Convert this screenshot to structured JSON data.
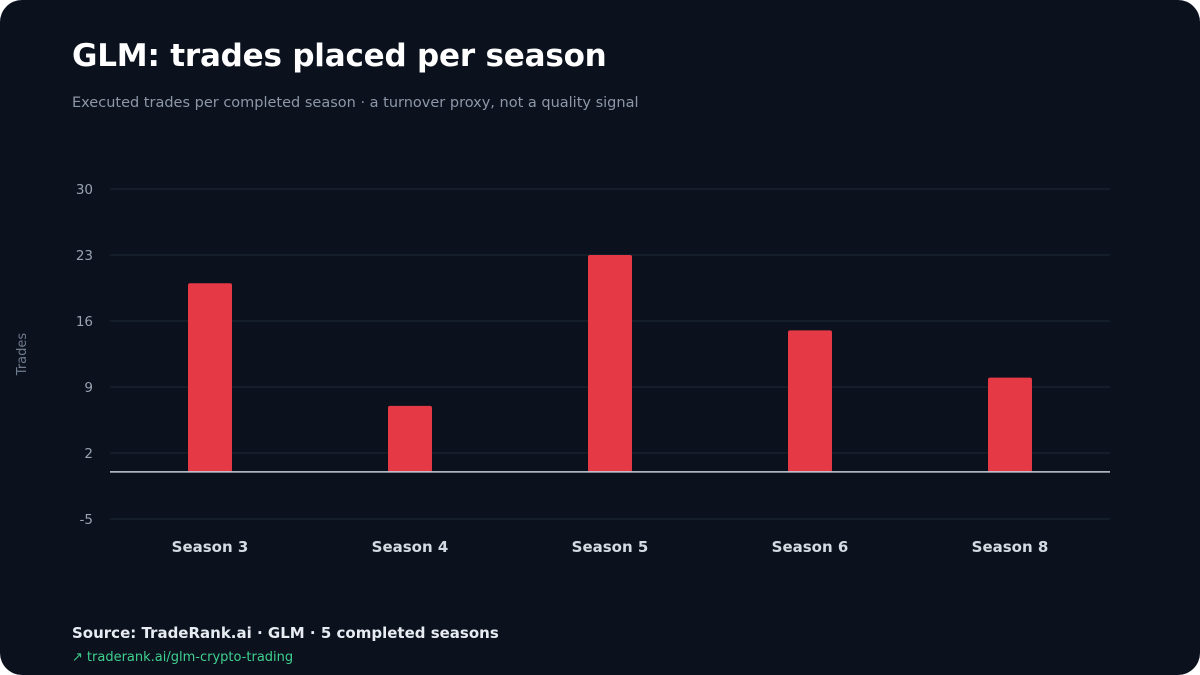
{
  "header": {
    "title": "GLM: trades placed per season",
    "subtitle": "Executed trades per completed season · a turnover proxy, not a quality signal"
  },
  "footer": {
    "source": "Source: TradeRank.ai · GLM · 5 completed seasons",
    "link_arrow": "↗",
    "link_text": "traderank.ai/glm-crypto-trading"
  },
  "colors": {
    "background": "#0b121e",
    "bar": "#e63946",
    "grid": "#1e2b36",
    "baseline": "#c5cdd8",
    "tick_label": "#9aa3b2",
    "category_label": "#d5dae2",
    "link": "#3fcf8e"
  },
  "chart_data": {
    "type": "bar",
    "ylabel": "Trades",
    "xlabel": "",
    "categories": [
      "Season 3",
      "Season 4",
      "Season 5",
      "Season 6",
      "Season 8"
    ],
    "values": [
      20,
      7,
      23,
      15,
      10
    ],
    "ylim": [
      -5,
      30
    ],
    "yticks": [
      -5,
      2,
      9,
      16,
      23,
      30
    ],
    "grid": true,
    "legend": "none"
  }
}
